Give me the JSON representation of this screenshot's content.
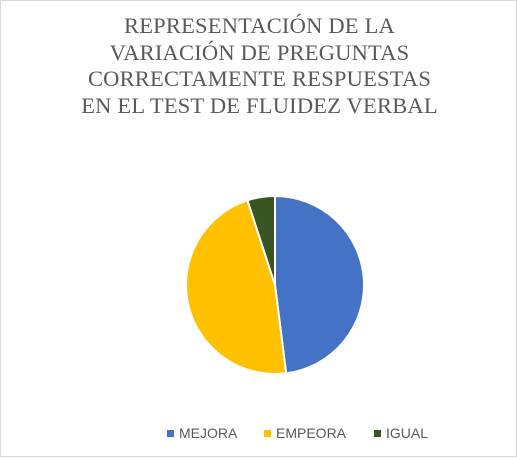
{
  "chart_data": {
    "type": "pie",
    "title_lines": [
      "REPRESENTACIÓN DE LA",
      "VARIACIÓN DE PREGUNTAS",
      "CORRECTAMENTE RESPUESTAS",
      "EN EL TEST DE FLUIDEZ VERBAL"
    ],
    "slices": [
      {
        "label": "MEJORA",
        "value": 48,
        "color": "#4472c4"
      },
      {
        "label": "EMPEORA",
        "value": 47,
        "color": "#ffc000"
      },
      {
        "label": "IGUAL",
        "value": 5,
        "color": "#375623"
      }
    ],
    "start_angle_deg": 0,
    "direction": "clockwise",
    "legend_position": "bottom"
  }
}
